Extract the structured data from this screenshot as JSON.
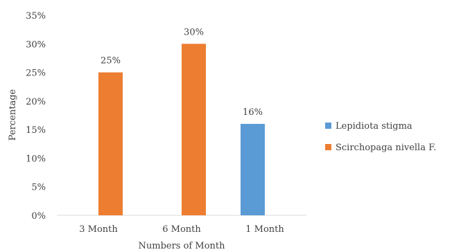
{
  "chart_data": {
    "type": "bar",
    "categories": [
      "3 Month",
      "6 Month",
      "1 Month"
    ],
    "series": [
      {
        "name": "Lepidiota stigma",
        "color": "#5B9BD5",
        "values": [
          null,
          null,
          16
        ]
      },
      {
        "name": "Scirchopaga nivella F.",
        "color": "#ED7D31",
        "values": [
          25,
          30,
          null
        ]
      }
    ],
    "data_labels": [
      "25%",
      "30%",
      "16%"
    ],
    "xlabel": "Numbers of Month",
    "ylabel": "Percentage",
    "ylim": [
      0,
      35
    ],
    "yticks": [
      "0%",
      "5%",
      "10%",
      "15%",
      "20%",
      "25%",
      "30%",
      "35%"
    ],
    "grid": false,
    "legend_position": "right"
  }
}
